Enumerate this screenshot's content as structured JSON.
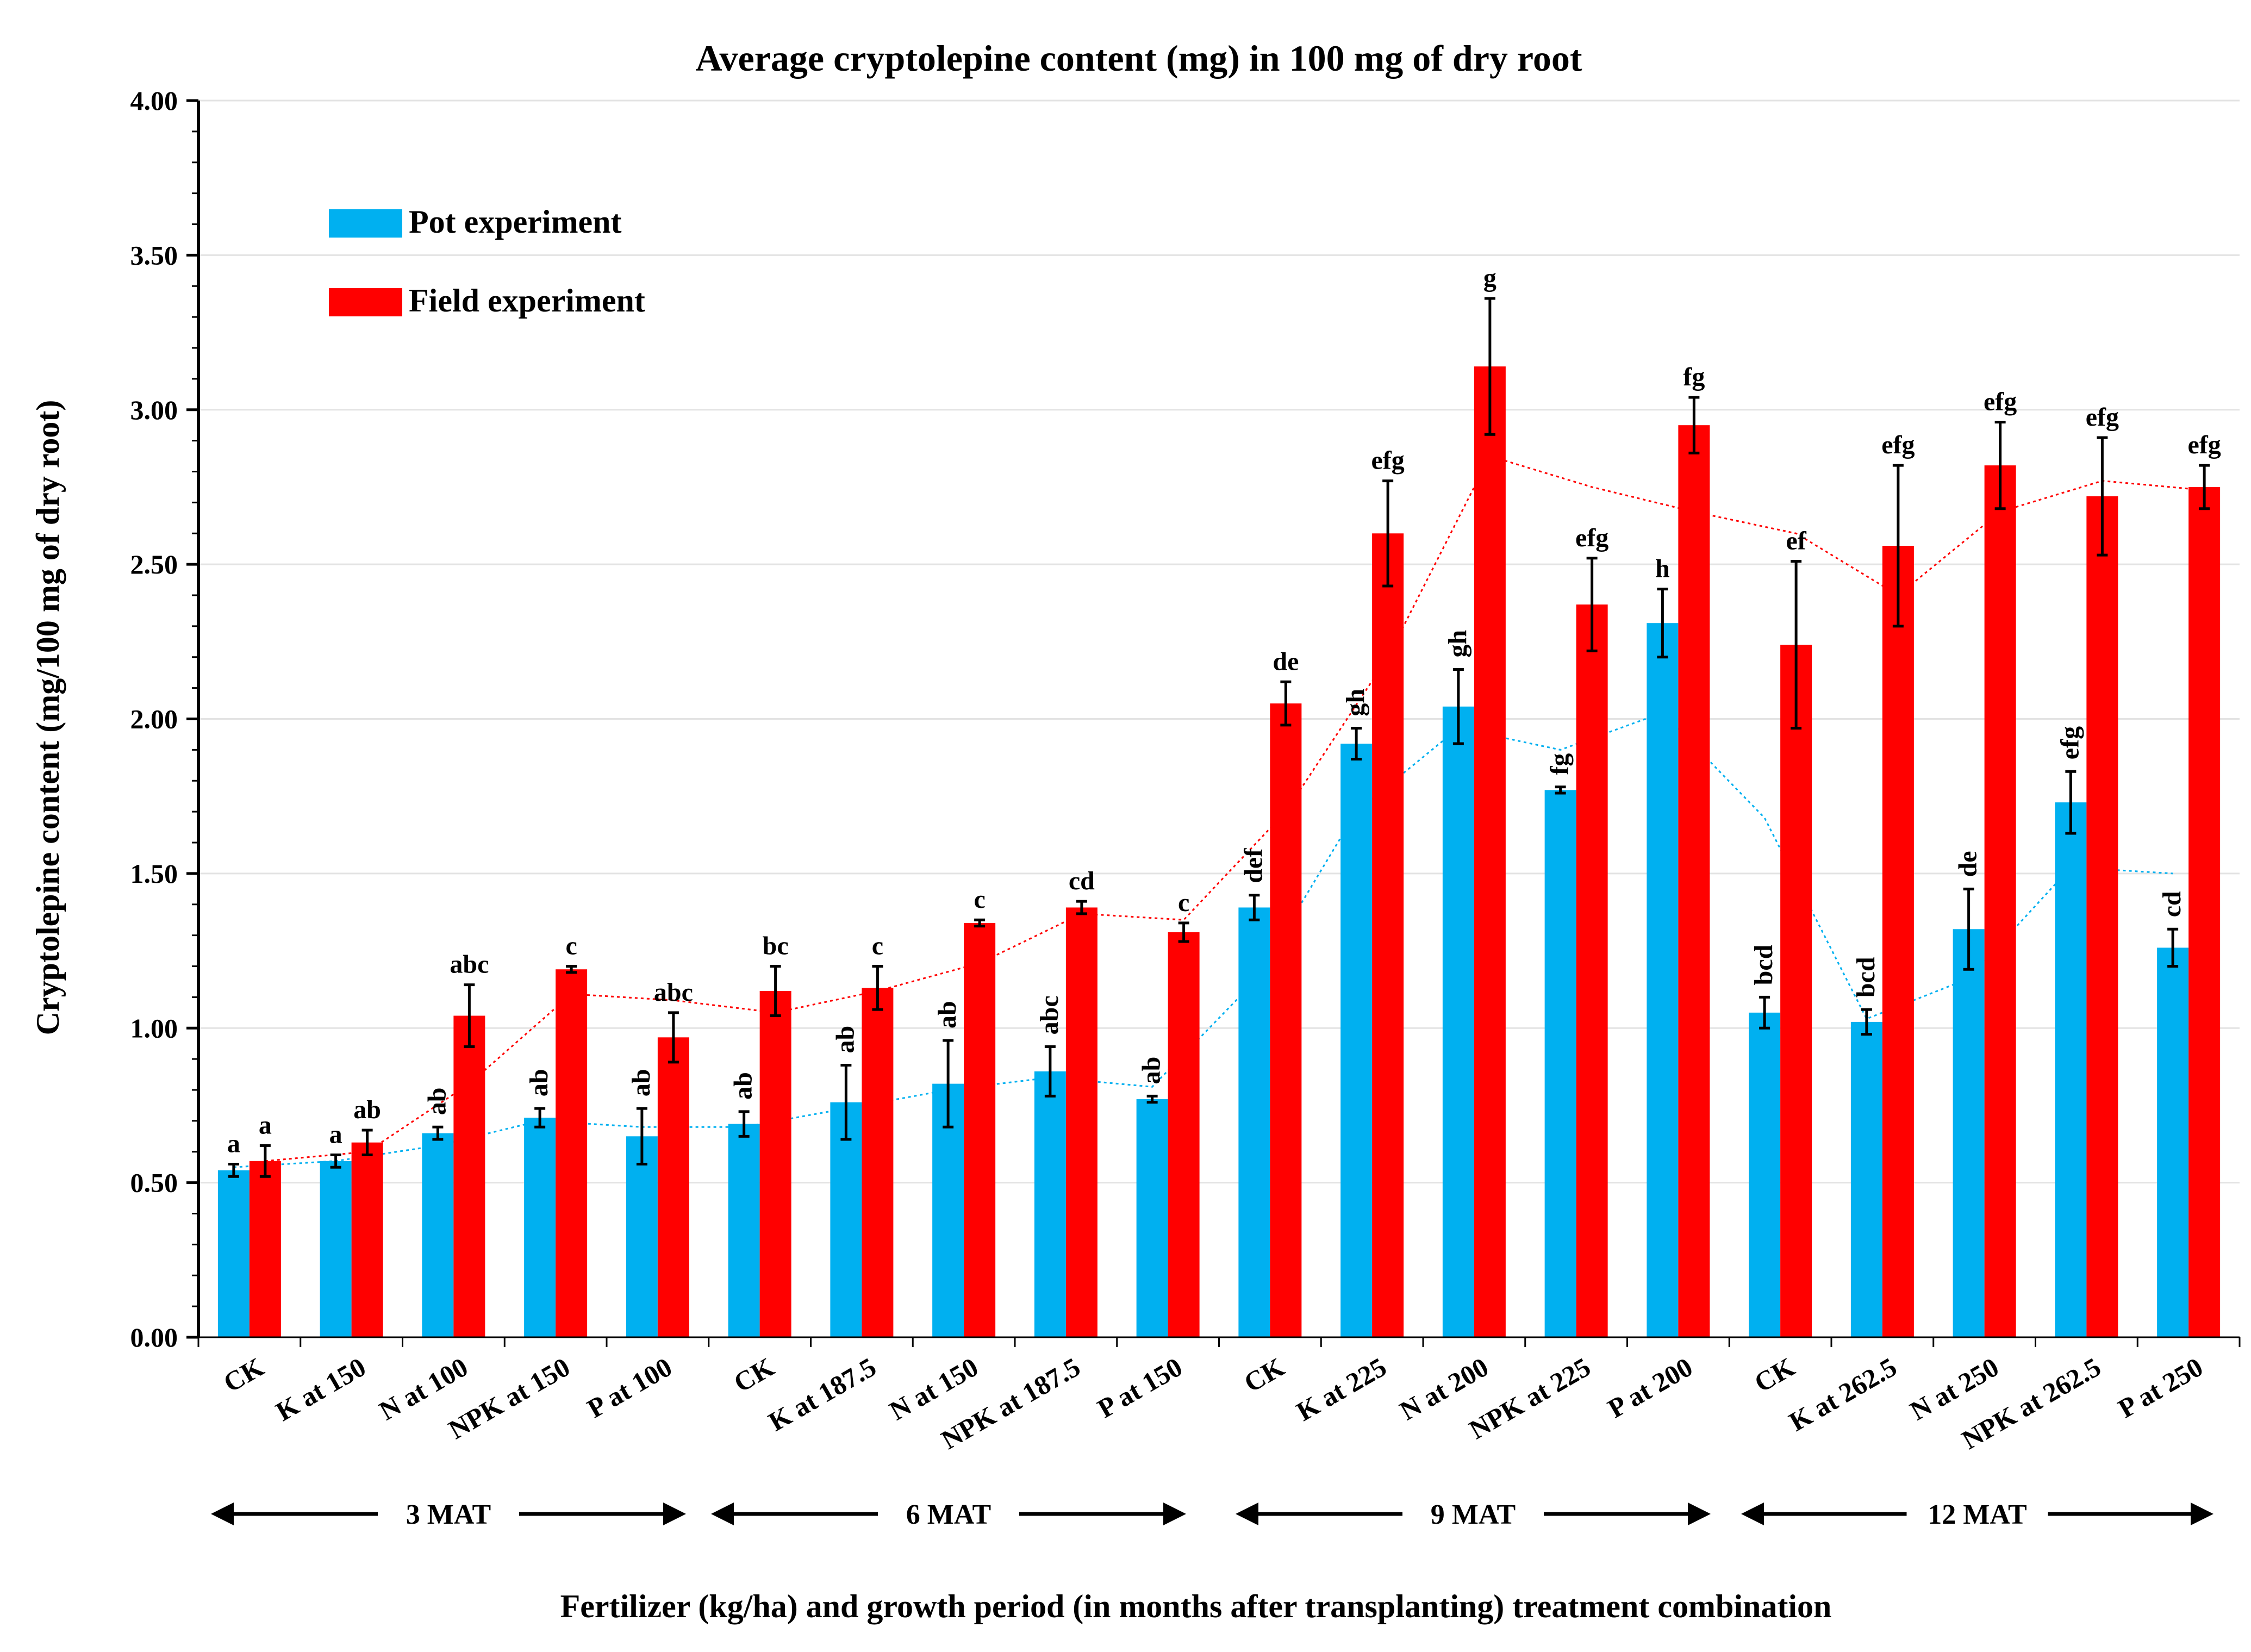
{
  "chart_data": {
    "type": "bar",
    "title": "Average cryptolepine content (mg) in 100 mg of dry root",
    "xlabel": "Fertilizer (kg/ha) and growth period  (in months after transplanting) treatment combination",
    "ylabel": "Cryptolepine content (mg/100 mg of dry root)",
    "ylim": [
      0,
      4
    ],
    "yticks": [
      "0.00",
      "0.50",
      "1.00",
      "1.50",
      "2.00",
      "2.50",
      "3.00",
      "3.50",
      "4.00"
    ],
    "legend_position": "top-left",
    "grid": true,
    "categories": [
      "CK",
      "K at 150",
      "N at 100",
      "NPK at 150",
      "P at 100",
      "CK",
      "K at 187.5",
      "N at 150",
      "NPK at 187.5",
      "P at 150",
      "CK",
      "K at 225",
      "N at 200",
      "NPK at 225",
      "P at 200",
      "CK",
      "K at 262.5",
      "N at 250",
      "NPK at 262.5",
      "P at 250"
    ],
    "series": [
      {
        "name": "Pot experiment",
        "color": "#00B0F0",
        "values": [
          0.54,
          0.57,
          0.66,
          0.71,
          0.65,
          0.69,
          0.76,
          0.82,
          0.86,
          0.77,
          1.39,
          1.92,
          2.04,
          1.77,
          2.31,
          1.05,
          1.02,
          1.32,
          1.73,
          1.26
        ],
        "errors": [
          0.02,
          0.02,
          0.02,
          0.03,
          0.09,
          0.04,
          0.12,
          0.14,
          0.08,
          0.01,
          0.04,
          0.05,
          0.12,
          0.01,
          0.11,
          0.05,
          0.04,
          0.13,
          0.1,
          0.06
        ],
        "labels": [
          "a",
          "a",
          "ab",
          "ab",
          "ab",
          "ab",
          "ab",
          "ab",
          "abc",
          "ab",
          "def",
          "gh",
          "gh",
          "fg",
          "h",
          "bcd",
          "bcd",
          "de",
          "efg",
          "cd"
        ],
        "trend": [
          0.55,
          0.57,
          0.62,
          0.7,
          0.68,
          0.68,
          0.74,
          0.8,
          0.84,
          0.81,
          1.15,
          1.7,
          1.97,
          1.9,
          2.02,
          1.68,
          1.03,
          1.16,
          1.52,
          1.5
        ]
      },
      {
        "name": "Field experiment",
        "color": "#FF0000",
        "values": [
          0.57,
          0.63,
          1.04,
          1.19,
          0.97,
          1.12,
          1.13,
          1.34,
          1.39,
          1.31,
          2.05,
          2.6,
          3.14,
          2.37,
          2.95,
          2.24,
          2.56,
          2.82,
          2.72,
          2.75
        ],
        "errors": [
          0.05,
          0.04,
          0.1,
          0.01,
          0.08,
          0.08,
          0.07,
          0.01,
          0.02,
          0.03,
          0.07,
          0.17,
          0.22,
          0.15,
          0.09,
          0.27,
          0.26,
          0.14,
          0.19,
          0.07
        ],
        "labels": [
          "a",
          "ab",
          "abc",
          "c",
          "abc",
          "bc",
          "c",
          "c",
          "cd",
          "c",
          "de",
          "efg",
          "g",
          "efg",
          "fg",
          "ef",
          "efg",
          "efg",
          "efg",
          "efg"
        ],
        "trend": [
          0.57,
          0.6,
          0.82,
          1.11,
          1.09,
          1.05,
          1.12,
          1.21,
          1.37,
          1.35,
          1.7,
          2.2,
          2.85,
          2.75,
          2.67,
          2.6,
          2.4,
          2.67,
          2.77,
          2.74
        ]
      }
    ],
    "periods": [
      "3 MAT",
      "6 MAT",
      "9 MAT",
      "12 MAT"
    ]
  }
}
